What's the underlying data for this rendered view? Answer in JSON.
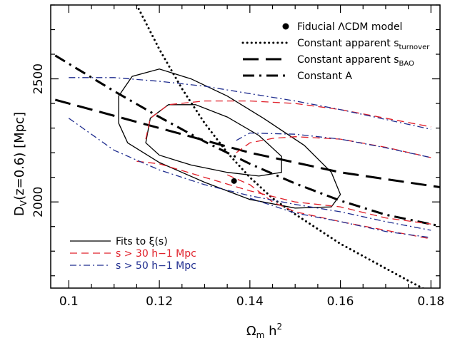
{
  "chart_data": {
    "type": "line",
    "xlabel": "Ωm h2",
    "ylabel": "DV(z=0.6) [Mpc]",
    "xlim": [
      0.096,
      0.182
    ],
    "ylim": [
      1650,
      2800
    ],
    "xticks": [
      0.1,
      0.12,
      0.14,
      0.16,
      0.18
    ],
    "xtick_labels": [
      "0.1",
      "0.12",
      "0.14",
      "0.16",
      "0.18"
    ],
    "yticks": [
      2000,
      2500
    ],
    "ytick_labels": [
      "2000",
      "2500"
    ],
    "grid": false,
    "legend_top": "top-right",
    "legend_bottom": "bottom-left",
    "legend_top_items": [
      {
        "key": "fiducial",
        "text": "Fiducial ΛCDM model",
        "sub": "",
        "style": "dot",
        "color": "#000000"
      },
      {
        "key": "turnover",
        "text": "Constant apparent s",
        "sub": "turnover",
        "style": "dotted",
        "color": "#000000"
      },
      {
        "key": "bao",
        "text": "Constant apparent s",
        "sub": "BAO",
        "style": "longdash",
        "color": "#000000"
      },
      {
        "key": "constA",
        "text": "Constant A",
        "sub": "",
        "style": "dashdot",
        "color": "#000000"
      }
    ],
    "legend_bottom_items": [
      {
        "key": "fits",
        "text": "Fits to ξ(s)",
        "style": "solid",
        "color": "#000000"
      },
      {
        "key": "s30",
        "text": "s > 30 h−1 Mpc",
        "style": "dashed",
        "color": "#e0202a"
      },
      {
        "key": "s50",
        "text": "s > 50 h−1 Mpc",
        "style": "dashdot-thin",
        "color": "#1f2d8f"
      }
    ],
    "fiducial_point": {
      "x": 0.1365,
      "y": 2085
    },
    "series": [
      {
        "key": "turnover",
        "style": "dotted",
        "color": "#000000",
        "points": [
          [
            0.115,
            2800
          ],
          [
            0.12,
            2620
          ],
          [
            0.125,
            2460
          ],
          [
            0.13,
            2320
          ],
          [
            0.135,
            2200
          ],
          [
            0.14,
            2100
          ],
          [
            0.145,
            2015
          ],
          [
            0.15,
            1950
          ],
          [
            0.155,
            1890
          ],
          [
            0.16,
            1830
          ],
          [
            0.165,
            1780
          ],
          [
            0.17,
            1730
          ],
          [
            0.175,
            1680
          ],
          [
            0.18,
            1632
          ]
        ]
      },
      {
        "key": "bao",
        "style": "longdash",
        "color": "#000000",
        "points": [
          [
            0.097,
            2415
          ],
          [
            0.12,
            2300
          ],
          [
            0.14,
            2200
          ],
          [
            0.16,
            2120
          ],
          [
            0.182,
            2060
          ]
        ]
      },
      {
        "key": "constA",
        "style": "dashdot",
        "color": "#000000",
        "points": [
          [
            0.097,
            2595
          ],
          [
            0.11,
            2450
          ],
          [
            0.12,
            2345
          ],
          [
            0.13,
            2245
          ],
          [
            0.14,
            2155
          ],
          [
            0.15,
            2075
          ],
          [
            0.16,
            2005
          ],
          [
            0.17,
            1948
          ],
          [
            0.182,
            1902
          ]
        ]
      },
      {
        "key": "fits_outer",
        "style": "solid",
        "color": "#000000",
        "closed": true,
        "points": [
          [
            0.111,
            2430
          ],
          [
            0.114,
            2510
          ],
          [
            0.12,
            2540
          ],
          [
            0.127,
            2500
          ],
          [
            0.135,
            2430
          ],
          [
            0.143,
            2340
          ],
          [
            0.152,
            2230
          ],
          [
            0.158,
            2120
          ],
          [
            0.16,
            2030
          ],
          [
            0.158,
            1980
          ],
          [
            0.15,
            1975
          ],
          [
            0.14,
            2010
          ],
          [
            0.13,
            2080
          ],
          [
            0.12,
            2160
          ],
          [
            0.113,
            2240
          ],
          [
            0.111,
            2320
          ]
        ]
      },
      {
        "key": "fits_inner",
        "style": "solid",
        "color": "#000000",
        "closed": true,
        "points": [
          [
            0.117,
            2240
          ],
          [
            0.118,
            2340
          ],
          [
            0.122,
            2395
          ],
          [
            0.128,
            2395
          ],
          [
            0.135,
            2345
          ],
          [
            0.142,
            2270
          ],
          [
            0.147,
            2185
          ],
          [
            0.147,
            2120
          ],
          [
            0.142,
            2105
          ],
          [
            0.135,
            2120
          ],
          [
            0.127,
            2150
          ],
          [
            0.12,
            2190
          ]
        ]
      },
      {
        "key": "red_outer_top",
        "style": "dashed",
        "color": "#e0202a",
        "points": [
          [
            0.117,
            2255
          ],
          [
            0.118,
            2340
          ],
          [
            0.122,
            2395
          ],
          [
            0.13,
            2410
          ],
          [
            0.14,
            2410
          ],
          [
            0.15,
            2400
          ],
          [
            0.16,
            2375
          ],
          [
            0.17,
            2340
          ],
          [
            0.18,
            2305
          ]
        ]
      },
      {
        "key": "red_inner_top",
        "style": "dashed",
        "color": "#e0202a",
        "points": [
          [
            0.137,
            2200
          ],
          [
            0.14,
            2240
          ],
          [
            0.145,
            2258
          ],
          [
            0.15,
            2265
          ],
          [
            0.16,
            2255
          ],
          [
            0.17,
            2222
          ],
          [
            0.18,
            2180
          ]
        ]
      },
      {
        "key": "red_lower",
        "style": "dashed",
        "color": "#e0202a",
        "points": [
          [
            0.115,
            2165
          ],
          [
            0.12,
            2155
          ],
          [
            0.13,
            2100
          ],
          [
            0.14,
            2045
          ],
          [
            0.15,
            2000
          ],
          [
            0.16,
            1980
          ],
          [
            0.17,
            1935
          ],
          [
            0.18,
            1910
          ]
        ]
      },
      {
        "key": "red_bottom",
        "style": "dashed",
        "color": "#e0202a",
        "points": [
          [
            0.135,
            2110
          ],
          [
            0.14,
            2070
          ],
          [
            0.145,
            2000
          ],
          [
            0.15,
            1960
          ],
          [
            0.16,
            1920
          ],
          [
            0.17,
            1885
          ],
          [
            0.18,
            1850
          ]
        ]
      },
      {
        "key": "blue_top",
        "style": "dashdot-thin",
        "color": "#1f2d8f",
        "points": [
          [
            0.1,
            2505
          ],
          [
            0.11,
            2505
          ],
          [
            0.12,
            2490
          ],
          [
            0.13,
            2470
          ],
          [
            0.14,
            2440
          ],
          [
            0.15,
            2410
          ],
          [
            0.16,
            2375
          ],
          [
            0.17,
            2335
          ],
          [
            0.18,
            2295
          ]
        ]
      },
      {
        "key": "blue_inner",
        "style": "dashdot-thin",
        "color": "#1f2d8f",
        "points": [
          [
            0.137,
            2250
          ],
          [
            0.14,
            2280
          ],
          [
            0.15,
            2275
          ],
          [
            0.16,
            2255
          ],
          [
            0.17,
            2220
          ],
          [
            0.18,
            2180
          ]
        ]
      },
      {
        "key": "blue_lower",
        "style": "dashdot-thin",
        "color": "#1f2d8f",
        "points": [
          [
            0.1,
            2340
          ],
          [
            0.11,
            2210
          ],
          [
            0.12,
            2130
          ],
          [
            0.13,
            2070
          ],
          [
            0.14,
            2025
          ],
          [
            0.15,
            1990
          ],
          [
            0.16,
            1960
          ],
          [
            0.17,
            1920
          ],
          [
            0.18,
            1885
          ]
        ]
      },
      {
        "key": "blue_bottom",
        "style": "dashdot-thin",
        "color": "#1f2d8f",
        "points": [
          [
            0.14,
            2015
          ],
          [
            0.15,
            1955
          ],
          [
            0.16,
            1920
          ],
          [
            0.17,
            1880
          ],
          [
            0.18,
            1855
          ]
        ]
      }
    ]
  }
}
